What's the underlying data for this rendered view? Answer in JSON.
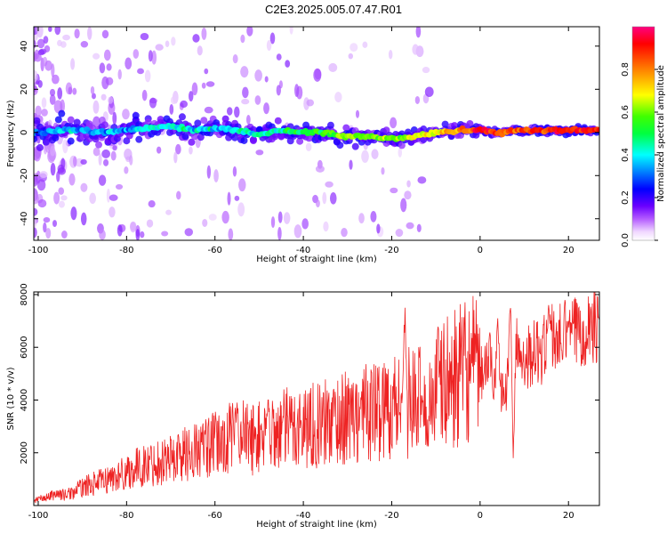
{
  "title": "C2E3.2025.005.07.47.R01",
  "chart_data": [
    {
      "type": "heatmap",
      "xlabel": "Height of straight line (km)",
      "ylabel": "Frequency (Hz)",
      "xlim": [
        -101,
        27
      ],
      "ylim": [
        -50,
        49
      ],
      "x_ticks": [
        "-100",
        "-80",
        "-60",
        "-40",
        "-20",
        "0",
        "20"
      ],
      "y_ticks": [
        "40",
        "20",
        "0",
        "-20",
        "-40"
      ],
      "x_tick_values": [
        -100,
        -80,
        -60,
        -40,
        -20,
        0,
        20
      ],
      "y_tick_values": [
        40,
        20,
        0,
        -20,
        -40
      ],
      "colorbar": {
        "label": "Normalized spectral amplitude",
        "range": [
          0,
          1
        ],
        "ticks": [
          "0.0",
          "0.2",
          "0.4",
          "0.6",
          "0.8"
        ],
        "tick_values": [
          0.0,
          0.2,
          0.4,
          0.6,
          0.8
        ]
      },
      "ridge": {
        "x": [
          -100,
          -95,
          -90,
          -85,
          -80,
          -75,
          -70,
          -65,
          -60,
          -55,
          -50,
          -45,
          -40,
          -35,
          -30,
          -25,
          -20,
          -15,
          -10,
          -5,
          0,
          5,
          10,
          15,
          20,
          25,
          27
        ],
        "frequency": [
          0,
          1,
          1,
          0,
          1,
          2,
          3,
          1,
          2,
          1,
          -1,
          1,
          0,
          0,
          -2,
          -2,
          -3,
          -2,
          0,
          1,
          1,
          0,
          1,
          1,
          1,
          1,
          1
        ],
        "amplitude": [
          0.3,
          0.35,
          0.35,
          0.35,
          0.35,
          0.4,
          0.4,
          0.4,
          0.4,
          0.4,
          0.45,
          0.45,
          0.5,
          0.55,
          0.6,
          0.6,
          0.6,
          0.65,
          0.7,
          0.75,
          0.95,
          0.85,
          0.85,
          0.9,
          0.9,
          0.9,
          0.9
        ]
      }
    },
    {
      "type": "line",
      "xlabel": "Height of straight line (km)",
      "ylabel": "SNR (10 * v/v)",
      "xlim": [
        -101,
        27
      ],
      "ylim": [
        0,
        8100
      ],
      "x_ticks": [
        "-100",
        "-80",
        "-60",
        "-40",
        "-20",
        "0",
        "20"
      ],
      "y_ticks": [
        "8000",
        "6000",
        "4000",
        "2000"
      ],
      "x_tick_values": [
        -100,
        -80,
        -60,
        -40,
        -20,
        0,
        20
      ],
      "y_tick_values": [
        8000,
        6000,
        4000,
        2000
      ],
      "color": "#ee2222",
      "series": [
        {
          "x": [
            -101,
            -100,
            -98,
            -96,
            -94,
            -92,
            -90,
            -88,
            -86,
            -84,
            -82,
            -80,
            -78,
            -76,
            -74,
            -72,
            -70,
            -68,
            -66,
            -64,
            -62,
            -60,
            -58,
            -56,
            -54,
            -52,
            -50,
            -48,
            -46,
            -44,
            -42,
            -40,
            -38,
            -36,
            -34,
            -32,
            -30,
            -28,
            -26,
            -24,
            -22,
            -20,
            -18,
            -16,
            -14,
            -12,
            -10,
            -8,
            -6,
            -4,
            -2,
            0,
            2,
            4,
            6,
            7,
            8,
            10,
            12,
            14,
            16,
            18,
            20,
            22,
            24,
            26,
            27
          ],
          "y": [
            150,
            250,
            300,
            450,
            400,
            500,
            700,
            800,
            900,
            1000,
            1100,
            1300,
            1400,
            1500,
            1600,
            1700,
            1800,
            1900,
            2000,
            2100,
            2200,
            2300,
            2400,
            2600,
            2700,
            2500,
            2600,
            2700,
            2800,
            2900,
            3000,
            3000,
            3100,
            3000,
            3200,
            3300,
            3300,
            3400,
            3500,
            3600,
            3700,
            3800,
            3900,
            3900,
            4000,
            3700,
            4500,
            4600,
            4800,
            5000,
            5200,
            4900,
            5500,
            4700,
            4300,
            5800,
            6000,
            5600,
            5800,
            5800,
            6400,
            6300,
            6500,
            6600,
            6800,
            6900,
            7000
          ],
          "peaks": [
            [
              -17,
              7500
            ],
            [
              7,
              8100
            ],
            [
              15.5,
              7600
            ],
            [
              4,
              7100
            ],
            [
              -48,
              4000
            ],
            [
              -55,
              3900
            ],
            [
              -27,
              4100
            ],
            [
              -13,
              3900
            ],
            [
              20,
              7000
            ],
            [
              7.5,
              1800
            ]
          ]
        }
      ]
    }
  ]
}
